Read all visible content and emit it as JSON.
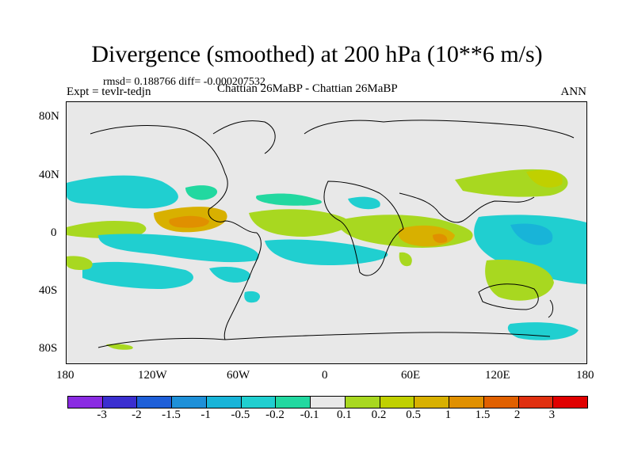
{
  "title": "Divergence (smoothed) at 200 hPa (10**6 m/s)",
  "stats": "rmsd= 0.188766 diff= -0.000207532",
  "expt": "Expt = tevlr-tedjn",
  "case_label": "Chattian  26MaBP - Chattian  26MaBP",
  "season": "ANN",
  "y_ticks": [
    "80N",
    "40N",
    "0",
    "40S",
    "80S"
  ],
  "x_ticks": [
    "180",
    "120W",
    "60W",
    "0",
    "60E",
    "120E",
    "180"
  ],
  "colorbar": {
    "colors": [
      "#8a2be2",
      "#3b2fd0",
      "#1e5fd8",
      "#1e90d8",
      "#18b4d8",
      "#20cfd0",
      "#22d8a0",
      "#e8e8e8",
      "#a8d820",
      "#c0d000",
      "#d8b000",
      "#e09000",
      "#e06000",
      "#e03010",
      "#e00000"
    ],
    "labels": [
      "-3",
      "-2",
      "-1.5",
      "-1",
      "-0.5",
      "-0.2",
      "-0.1",
      "0.1",
      "0.2",
      "0.5",
      "1",
      "1.5",
      "2",
      "3"
    ]
  },
  "map_colors": {
    "background": "#e8e8e8",
    "neg_light": "#22d8a0",
    "neg_mid": "#20cfd0",
    "neg_strong": "#18b4d8",
    "neg_deep": "#1e90d8",
    "pos_light": "#a8d820",
    "pos_mid": "#c0d000",
    "pos_strong": "#d8b000",
    "pos_deep": "#e09000",
    "pos_max": "#e06000"
  }
}
